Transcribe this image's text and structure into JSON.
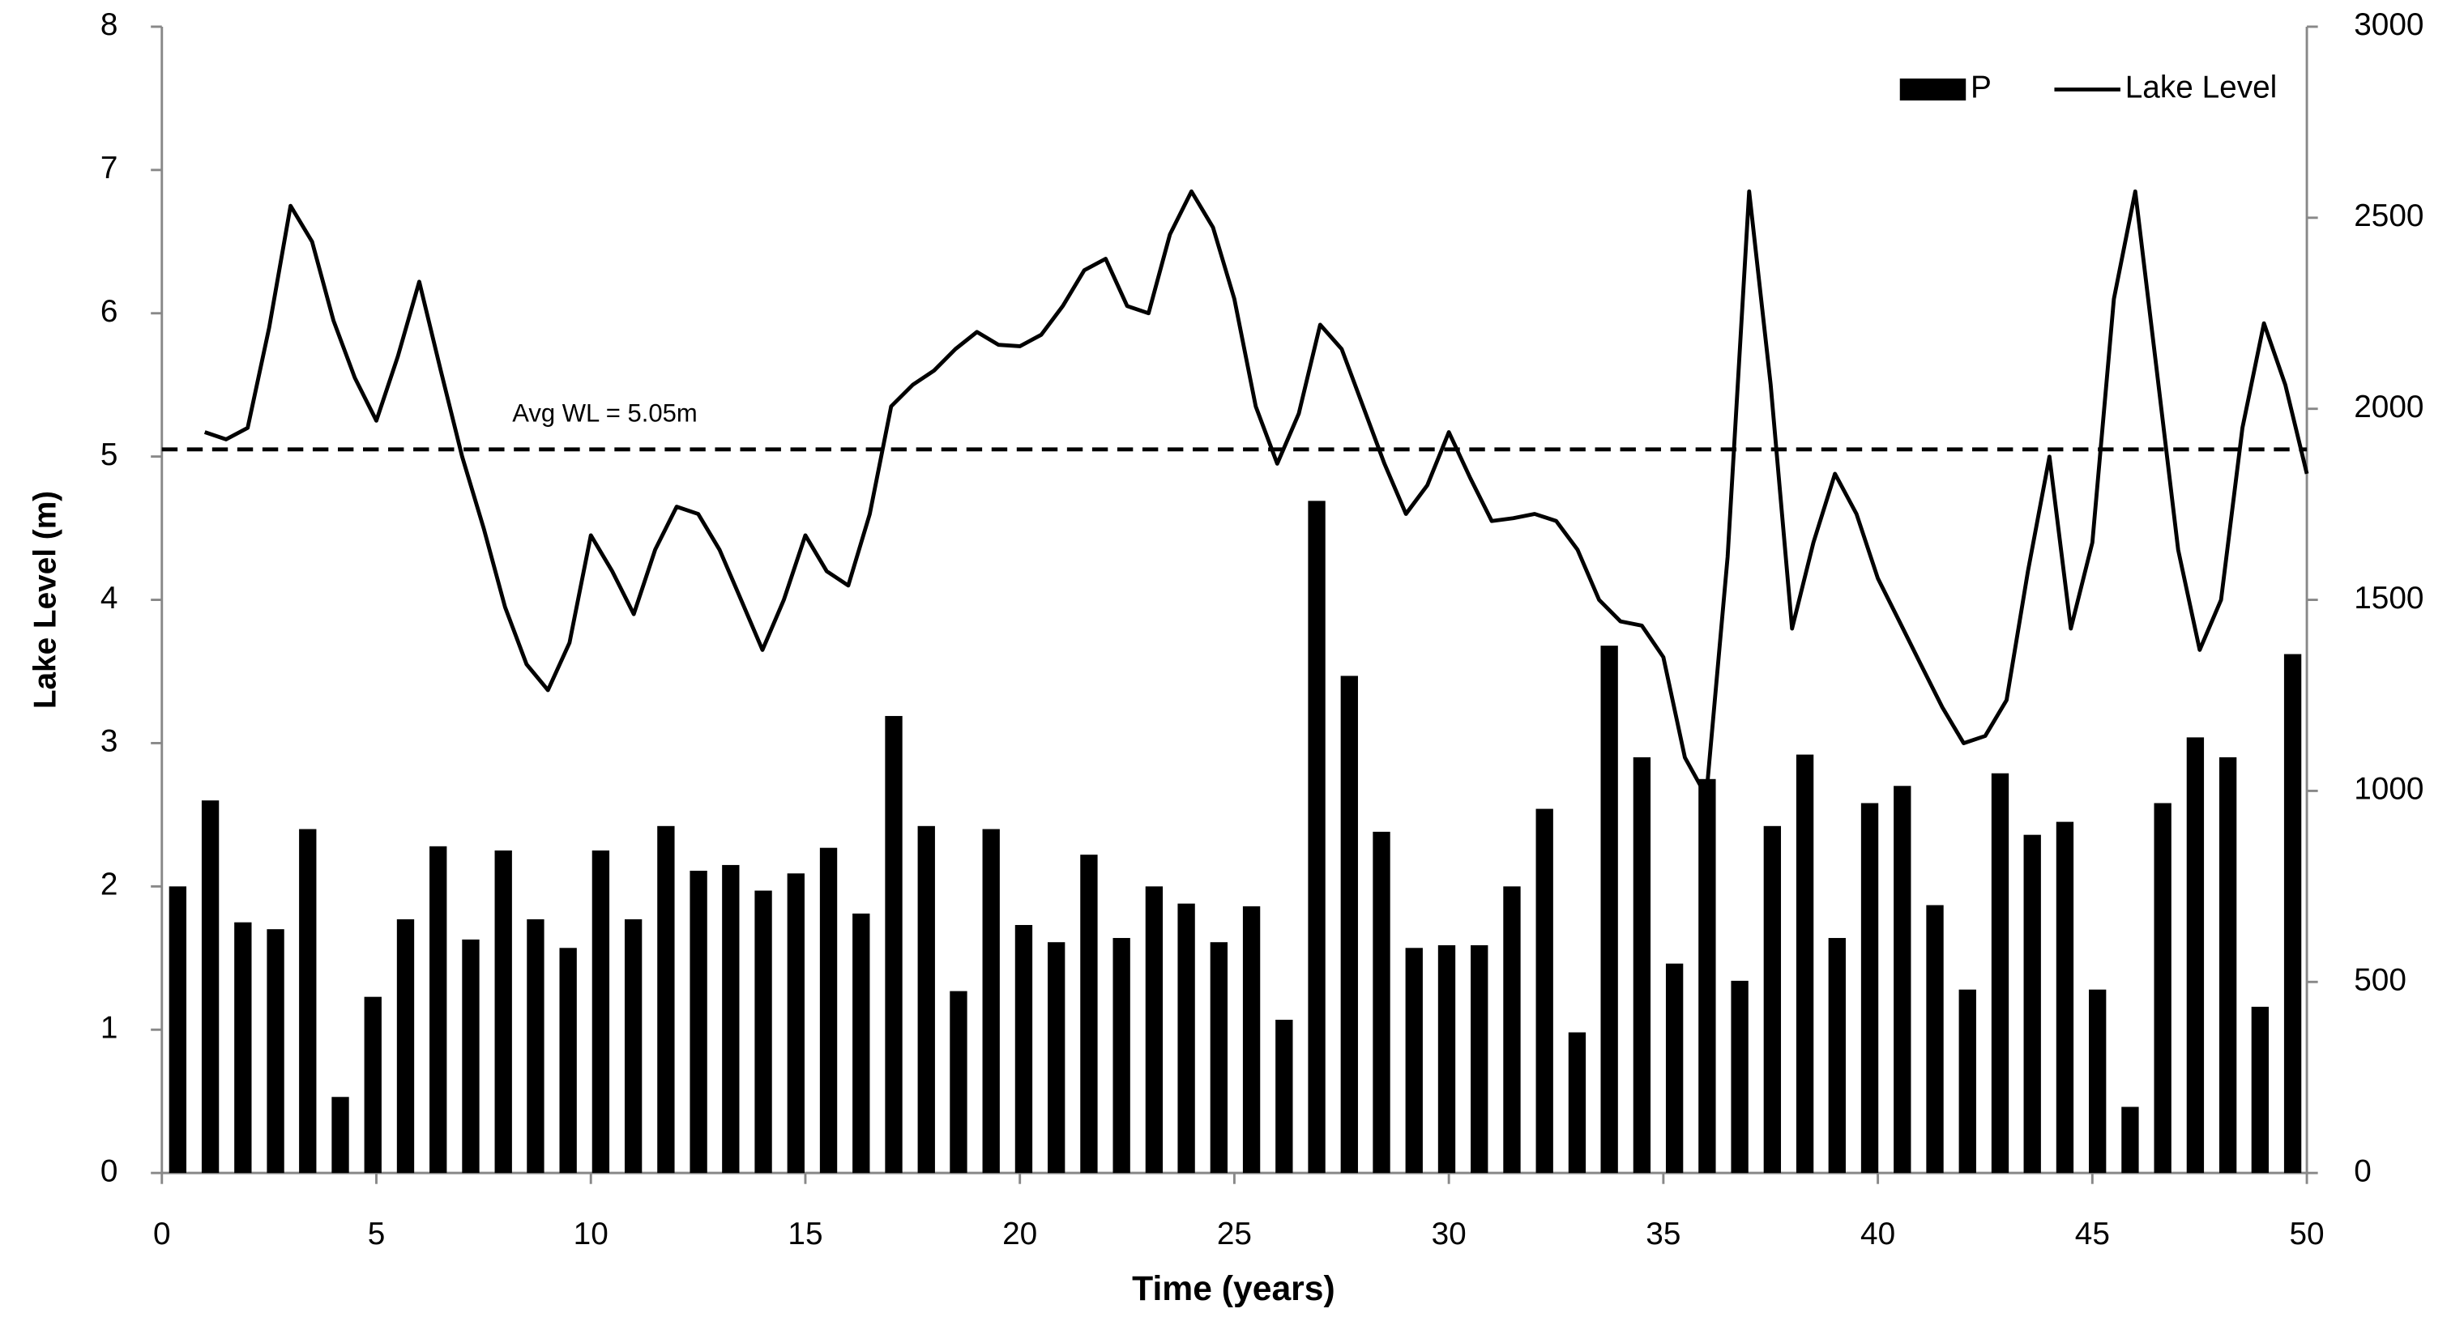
{
  "chart_data": {
    "type": "combo",
    "x_label": "Time (years)",
    "y_label": "Lake Level (m)",
    "xlim": [
      0,
      50
    ],
    "xticks": [
      0,
      5,
      10,
      15,
      20,
      25,
      30,
      35,
      40,
      45,
      50
    ],
    "ylim": [
      0,
      8
    ],
    "yticks": [
      0,
      1,
      2,
      3,
      4,
      5,
      6,
      7,
      8
    ],
    "y2lim": [
      0,
      3000
    ],
    "y2ticks": [
      0,
      500,
      1000,
      1500,
      2000,
      2500,
      3000
    ],
    "grid": false,
    "legend": "top-right",
    "hline": {
      "value": 5.05,
      "label": "Avg WL = 5.05m",
      "color": "#000"
    },
    "series": [
      {
        "name": "P",
        "type": "bar",
        "axis": "y2",
        "color": "#000000",
        "x": [
          0.37,
          1.13,
          1.89,
          2.65,
          3.4,
          4.16,
          4.92,
          5.68,
          6.44,
          7.2,
          7.96,
          8.71,
          9.47,
          10.23,
          10.99,
          11.75,
          12.51,
          13.26,
          14.02,
          14.78,
          15.54,
          16.3,
          17.06,
          17.82,
          18.57,
          19.33,
          20.09,
          20.85,
          21.61,
          22.37,
          23.13,
          23.88,
          24.64,
          25.4,
          26.16,
          26.92,
          27.68,
          28.43,
          29.19,
          29.95,
          30.71,
          31.47,
          32.23,
          32.99,
          33.74,
          34.5,
          35.26,
          36.02,
          36.78,
          37.54,
          38.3,
          39.05,
          39.81,
          40.57,
          41.33,
          42.09,
          42.85,
          43.6,
          44.36,
          45.12,
          45.88,
          46.64,
          47.4,
          48.16,
          48.91,
          49.67
        ],
        "values": [
          750,
          975,
          656,
          638,
          900,
          199,
          461,
          664,
          855,
          611,
          844,
          664,
          589,
          844,
          664,
          908,
          791,
          806,
          739,
          784,
          851,
          679,
          1196,
          908,
          476,
          900,
          649,
          604,
          833,
          615,
          750,
          705,
          604,
          698,
          401,
          1759,
          1301,
          893,
          589,
          596,
          596,
          750,
          953,
          368,
          1380,
          1088,
          548,
          1031,
          503,
          908,
          1095,
          615,
          968,
          1013,
          701,
          480,
          1046,
          885,
          919,
          480,
          173,
          968,
          1140,
          1088,
          435,
          1358
        ]
      },
      {
        "name": "Lake Level",
        "type": "line",
        "color": "#000000",
        "x": [
          1,
          1.5,
          2,
          2.5,
          3,
          3.5,
          4,
          4.5,
          5,
          5.5,
          6,
          6.5,
          7,
          7.5,
          8,
          8.5,
          9,
          9.5,
          10,
          10.5,
          11,
          11.5,
          12,
          12.5,
          13,
          13.5,
          14,
          14.5,
          15,
          15.5,
          16,
          16.5,
          17,
          17.5,
          18,
          18.5,
          19,
          19.5,
          20,
          20.5,
          21,
          21.5,
          22,
          22.5,
          23,
          23.5,
          24,
          24.5,
          25,
          25.5,
          26,
          26.5,
          27,
          27.5,
          28,
          28.5,
          29,
          29.5,
          30,
          30.5,
          31,
          31.5,
          32,
          32.5,
          33,
          33.5,
          34,
          34.5,
          35,
          35.5,
          36,
          36.5,
          37,
          37.5,
          38,
          38.5,
          39,
          39.5,
          40,
          40.5,
          41,
          41.5,
          42,
          42.5,
          43,
          43.5,
          44,
          44.5,
          45,
          45.5,
          46,
          46.5,
          47,
          47.5,
          48,
          48.5,
          49,
          49.5,
          50
        ],
        "values": [
          5.17,
          5.12,
          5.2,
          5.9,
          6.75,
          6.5,
          5.95,
          5.55,
          5.25,
          5.7,
          6.22,
          5.6,
          5.0,
          4.5,
          3.95,
          3.55,
          3.37,
          3.7,
          4.45,
          4.2,
          3.9,
          4.35,
          4.65,
          4.6,
          4.35,
          4.0,
          3.65,
          4.0,
          4.45,
          4.2,
          4.1,
          4.6,
          5.35,
          5.5,
          5.6,
          5.75,
          5.87,
          5.78,
          5.77,
          5.85,
          6.05,
          6.3,
          6.38,
          6.05,
          6.0,
          6.55,
          6.85,
          6.6,
          6.1,
          5.35,
          4.95,
          5.3,
          5.92,
          5.75,
          5.35,
          4.95,
          4.6,
          4.8,
          5.17,
          4.85,
          4.55,
          4.57,
          4.6,
          4.55,
          4.35,
          4.0,
          3.85,
          3.82,
          3.6,
          2.9,
          2.63,
          4.3,
          6.85,
          5.5,
          3.8,
          4.4,
          4.88,
          4.6,
          4.15,
          3.85,
          3.55,
          3.25,
          3.0,
          3.05,
          3.3,
          4.2,
          5.0,
          3.8,
          4.4,
          6.1,
          6.85,
          5.6,
          4.35,
          3.65,
          4.0,
          5.2,
          5.93,
          5.5,
          4.88
        ]
      }
    ]
  }
}
